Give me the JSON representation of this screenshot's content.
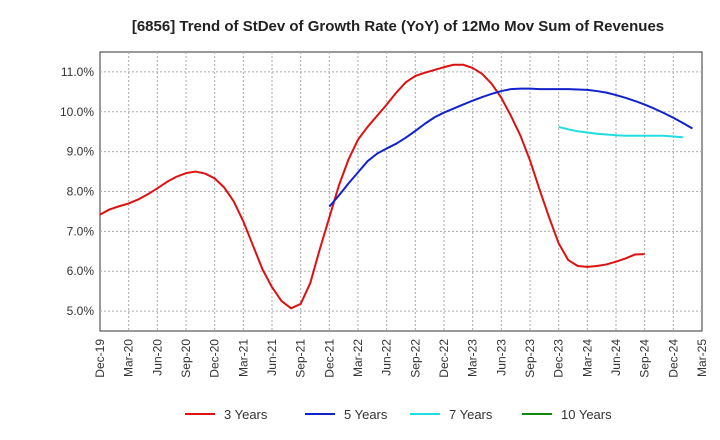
{
  "chart_data": {
    "type": "line",
    "title": "[6856]  Trend of StDev of Growth Rate (YoY) of 12Mo Mov Sum of Revenues",
    "xlabel": "",
    "ylabel": "",
    "ylim": [
      4.5,
      11.5
    ],
    "yticks": [
      5.0,
      6.0,
      7.0,
      8.0,
      9.0,
      10.0,
      11.0
    ],
    "ytick_labels": [
      "5.0%",
      "6.0%",
      "7.0%",
      "8.0%",
      "9.0%",
      "10.0%",
      "11.0%"
    ],
    "xtick_labels": [
      "Dec-19",
      "Mar-20",
      "Jun-20",
      "Sep-20",
      "Dec-20",
      "Mar-21",
      "Jun-21",
      "Sep-21",
      "Dec-21",
      "Mar-22",
      "Jun-22",
      "Sep-22",
      "Dec-22",
      "Mar-23",
      "Jun-23",
      "Sep-23",
      "Dec-23",
      "Mar-24",
      "Jun-24",
      "Sep-24",
      "Dec-24",
      "Mar-25"
    ],
    "x_start": "Dec-19",
    "x_step_months": 1,
    "grid": true,
    "legend_position": "bottom",
    "series": [
      {
        "name": "3 Years",
        "color": "#dd1111",
        "start_index": 0,
        "values": [
          7.42,
          7.55,
          7.63,
          7.7,
          7.8,
          7.93,
          8.08,
          8.24,
          8.37,
          8.46,
          8.5,
          8.45,
          8.33,
          8.1,
          7.75,
          7.25,
          6.65,
          6.05,
          5.6,
          5.25,
          5.07,
          5.18,
          5.7,
          6.55,
          7.35,
          8.15,
          8.8,
          9.3,
          9.62,
          9.9,
          10.18,
          10.48,
          10.74,
          10.9,
          10.98,
          11.05,
          11.12,
          11.18,
          11.18,
          11.1,
          10.95,
          10.7,
          10.35,
          9.9,
          9.4,
          8.78,
          8.05,
          7.35,
          6.7,
          6.28,
          6.13,
          6.11,
          6.13,
          6.17,
          6.24,
          6.32,
          6.42,
          6.43
        ]
      },
      {
        "name": "5 Years",
        "color": "#1122cc",
        "start_index": 24,
        "values": [
          7.62,
          7.9,
          8.2,
          8.48,
          8.76,
          8.95,
          9.08,
          9.2,
          9.35,
          9.52,
          9.7,
          9.86,
          9.98,
          10.08,
          10.18,
          10.28,
          10.37,
          10.45,
          10.52,
          10.57,
          10.58,
          10.58,
          10.57,
          10.57,
          10.57,
          10.57,
          10.56,
          10.55,
          10.52,
          10.48,
          10.42,
          10.35,
          10.27,
          10.18,
          10.08,
          9.97,
          9.85,
          9.72,
          9.58
        ]
      },
      {
        "name": "7 Years",
        "color": "#22dddd",
        "start_index": 48,
        "values": [
          9.62,
          9.56,
          9.51,
          9.48,
          9.45,
          9.43,
          9.41,
          9.4,
          9.4,
          9.4,
          9.4,
          9.4,
          9.38,
          9.36
        ]
      },
      {
        "name": "10 Years",
        "color": "#118811",
        "start_index": 0,
        "values": []
      }
    ]
  }
}
